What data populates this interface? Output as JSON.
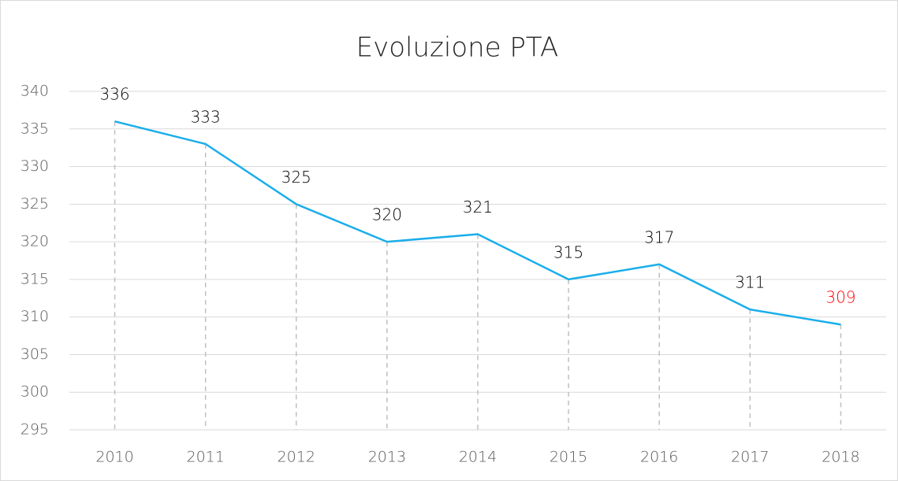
{
  "chart_data": {
    "type": "line",
    "title": "Evoluzione PTA",
    "categories": [
      "2010",
      "2011",
      "2012",
      "2013",
      "2014",
      "2015",
      "2016",
      "2017",
      "2018"
    ],
    "values": [
      336,
      333,
      325,
      320,
      321,
      315,
      317,
      311,
      309
    ],
    "color": "#1aaeea",
    "label_colors": [
      "#000000",
      "#000000",
      "#000000",
      "#000000",
      "#000000",
      "#000000",
      "#000000",
      "#000000",
      "#ff0000"
    ],
    "drop_lines": true,
    "ylim": [
      295,
      340
    ],
    "yticks": [
      295,
      300,
      305,
      310,
      315,
      320,
      325,
      330,
      335,
      340
    ],
    "grid": true
  }
}
